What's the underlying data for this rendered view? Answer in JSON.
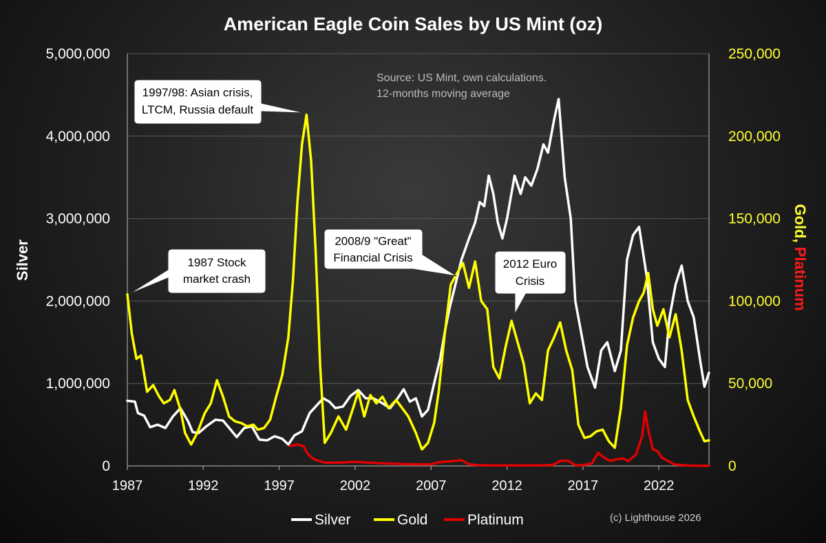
{
  "chart_data": {
    "type": "line",
    "title": "American Eagle Coin Sales by US Mint (oz)",
    "ylabel_left": "Silver",
    "ylabel_right_parts": [
      "Gold, ",
      "Platinum"
    ],
    "ylim_left": [
      0,
      5000000
    ],
    "ylim_right": [
      0,
      250000
    ],
    "xlim": [
      1987,
      2025.3
    ],
    "left_ticks": [
      "0",
      "1,000,000",
      "2,000,000",
      "3,000,000",
      "4,000,000",
      "5,000,000"
    ],
    "right_ticks": [
      "0",
      "50,000",
      "100,000",
      "150,000",
      "200,000",
      "250,000"
    ],
    "x_ticks": [
      "1987",
      "1992",
      "1997",
      "2002",
      "2007",
      "2012",
      "2017",
      "2022"
    ],
    "grid": "horizontal",
    "legend_position": "bottom",
    "source_lines": [
      "Source: US Mint, own calculations.",
      "12-months moving average"
    ],
    "credit": "(c) Lighthouse 2026",
    "colors": {
      "silver": "#ffffff",
      "gold": "#ffff00",
      "platinum": "#e00000",
      "right_axis": "#ffff33",
      "platinum_label": "#ff1a1a"
    },
    "series": [
      {
        "name": "Silver",
        "axis": "left",
        "color": "#ffffff",
        "points": [
          [
            1987,
            790000
          ],
          [
            1987.5,
            780000
          ],
          [
            1987.7,
            640000
          ],
          [
            1988.1,
            610000
          ],
          [
            1988.5,
            470000
          ],
          [
            1989,
            500000
          ],
          [
            1989.5,
            460000
          ],
          [
            1990,
            600000
          ],
          [
            1990.5,
            700000
          ],
          [
            1991,
            540000
          ],
          [
            1991.3,
            410000
          ],
          [
            1991.7,
            400000
          ],
          [
            1992.2,
            480000
          ],
          [
            1992.8,
            560000
          ],
          [
            1993.3,
            550000
          ],
          [
            1993.8,
            440000
          ],
          [
            1994.2,
            350000
          ],
          [
            1994.7,
            460000
          ],
          [
            1995.2,
            480000
          ],
          [
            1995.7,
            320000
          ],
          [
            1996.2,
            310000
          ],
          [
            1996.7,
            360000
          ],
          [
            1997.2,
            330000
          ],
          [
            1997.6,
            260000
          ],
          [
            1998,
            370000
          ],
          [
            1998.5,
            420000
          ],
          [
            1999,
            640000
          ],
          [
            1999.5,
            740000
          ],
          [
            1999.9,
            820000
          ],
          [
            2000.3,
            780000
          ],
          [
            2000.7,
            700000
          ],
          [
            2001.2,
            720000
          ],
          [
            2001.7,
            850000
          ],
          [
            2002.2,
            920000
          ],
          [
            2002.7,
            820000
          ],
          [
            2003.2,
            820000
          ],
          [
            2003.8,
            760000
          ],
          [
            2004.3,
            700000
          ],
          [
            2004.8,
            820000
          ],
          [
            2005.2,
            930000
          ],
          [
            2005.6,
            780000
          ],
          [
            2006,
            820000
          ],
          [
            2006.4,
            600000
          ],
          [
            2006.8,
            680000
          ],
          [
            2007.2,
            1000000
          ],
          [
            2007.6,
            1300000
          ],
          [
            2007.9,
            1620000
          ],
          [
            2008.2,
            1900000
          ],
          [
            2008.6,
            2200000
          ],
          [
            2009,
            2500000
          ],
          [
            2009.5,
            2760000
          ],
          [
            2009.9,
            2950000
          ],
          [
            2010.2,
            3200000
          ],
          [
            2010.5,
            3150000
          ],
          [
            2010.8,
            3520000
          ],
          [
            2011.1,
            3300000
          ],
          [
            2011.4,
            2950000
          ],
          [
            2011.7,
            2760000
          ],
          [
            2012,
            3000000
          ],
          [
            2012.5,
            3520000
          ],
          [
            2012.9,
            3300000
          ],
          [
            2013.2,
            3500000
          ],
          [
            2013.6,
            3400000
          ],
          [
            2014,
            3600000
          ],
          [
            2014.4,
            3900000
          ],
          [
            2014.7,
            3800000
          ],
          [
            2015.1,
            4200000
          ],
          [
            2015.4,
            4450000
          ],
          [
            2015.8,
            3500000
          ],
          [
            2016.2,
            3000000
          ],
          [
            2016.5,
            2000000
          ],
          [
            2016.9,
            1600000
          ],
          [
            2017.3,
            1200000
          ],
          [
            2017.8,
            950000
          ],
          [
            2018.2,
            1400000
          ],
          [
            2018.6,
            1500000
          ],
          [
            2019.1,
            1150000
          ],
          [
            2019.5,
            1400000
          ],
          [
            2019.9,
            2500000
          ],
          [
            2020.3,
            2800000
          ],
          [
            2020.7,
            2900000
          ],
          [
            2021.2,
            2300000
          ],
          [
            2021.6,
            1500000
          ],
          [
            2022,
            1300000
          ],
          [
            2022.4,
            1200000
          ],
          [
            2022.7,
            1800000
          ],
          [
            2023.1,
            2200000
          ],
          [
            2023.5,
            2430000
          ],
          [
            2023.9,
            2000000
          ],
          [
            2024.3,
            1800000
          ],
          [
            2024.7,
            1300000
          ],
          [
            2025,
            960000
          ],
          [
            2025.3,
            1130000
          ]
        ]
      },
      {
        "name": "Gold",
        "axis": "right",
        "color": "#ffff00",
        "points": [
          [
            1987,
            104000
          ],
          [
            1987.3,
            80000
          ],
          [
            1987.6,
            65000
          ],
          [
            1987.9,
            67000
          ],
          [
            1988.3,
            45000
          ],
          [
            1988.7,
            49000
          ],
          [
            1989.1,
            42000
          ],
          [
            1989.4,
            38000
          ],
          [
            1989.8,
            40000
          ],
          [
            1990.1,
            46000
          ],
          [
            1990.5,
            34000
          ],
          [
            1990.8,
            20000
          ],
          [
            1991.2,
            13000
          ],
          [
            1991.6,
            20000
          ],
          [
            1992.1,
            32000
          ],
          [
            1992.5,
            38000
          ],
          [
            1992.9,
            52000
          ],
          [
            1993.3,
            42000
          ],
          [
            1993.7,
            30000
          ],
          [
            1994.1,
            27000
          ],
          [
            1994.5,
            26000
          ],
          [
            1994.9,
            24000
          ],
          [
            1995.3,
            25000
          ],
          [
            1995.6,
            22000
          ],
          [
            1996,
            23000
          ],
          [
            1996.4,
            28000
          ],
          [
            1996.8,
            42000
          ],
          [
            1997.2,
            55000
          ],
          [
            1997.6,
            78000
          ],
          [
            1997.9,
            112000
          ],
          [
            1998.2,
            160000
          ],
          [
            1998.5,
            195000
          ],
          [
            1998.8,
            213000
          ],
          [
            1999.1,
            185000
          ],
          [
            1999.4,
            130000
          ],
          [
            1999.7,
            60000
          ],
          [
            2000,
            14000
          ],
          [
            2000.4,
            20000
          ],
          [
            2000.9,
            30000
          ],
          [
            2001.4,
            22000
          ],
          [
            2001.9,
            36000
          ],
          [
            2002.2,
            45000
          ],
          [
            2002.6,
            30000
          ],
          [
            2003,
            43000
          ],
          [
            2003.4,
            38000
          ],
          [
            2003.8,
            42000
          ],
          [
            2004.2,
            35000
          ],
          [
            2004.7,
            40000
          ],
          [
            2005.1,
            35000
          ],
          [
            2005.5,
            30000
          ],
          [
            2006,
            20000
          ],
          [
            2006.4,
            10000
          ],
          [
            2006.8,
            14000
          ],
          [
            2007.2,
            26000
          ],
          [
            2007.5,
            45000
          ],
          [
            2007.9,
            80000
          ],
          [
            2008.3,
            110000
          ],
          [
            2008.6,
            115000
          ],
          [
            2009.1,
            123000
          ],
          [
            2009.5,
            108000
          ],
          [
            2009.9,
            124000
          ],
          [
            2010.3,
            100000
          ],
          [
            2010.7,
            95000
          ],
          [
            2011.1,
            60000
          ],
          [
            2011.5,
            53000
          ],
          [
            2011.9,
            72000
          ],
          [
            2012.3,
            88000
          ],
          [
            2012.7,
            75000
          ],
          [
            2013.1,
            62000
          ],
          [
            2013.5,
            38000
          ],
          [
            2013.9,
            44000
          ],
          [
            2014.3,
            40000
          ],
          [
            2014.7,
            70000
          ],
          [
            2015.1,
            78000
          ],
          [
            2015.5,
            87000
          ],
          [
            2015.9,
            70000
          ],
          [
            2016.3,
            58000
          ],
          [
            2016.7,
            25000
          ],
          [
            2017.1,
            17000
          ],
          [
            2017.5,
            18000
          ],
          [
            2017.9,
            21000
          ],
          [
            2018.3,
            22000
          ],
          [
            2018.7,
            15000
          ],
          [
            2019.1,
            11000
          ],
          [
            2019.5,
            35000
          ],
          [
            2019.9,
            73000
          ],
          [
            2020.3,
            90000
          ],
          [
            2020.7,
            100000
          ],
          [
            2021,
            105000
          ],
          [
            2021.3,
            117000
          ],
          [
            2021.6,
            95000
          ],
          [
            2021.9,
            85000
          ],
          [
            2022.3,
            95000
          ],
          [
            2022.7,
            78000
          ],
          [
            2023.1,
            92000
          ],
          [
            2023.5,
            70000
          ],
          [
            2023.9,
            40000
          ],
          [
            2024.3,
            30000
          ],
          [
            2024.7,
            21000
          ],
          [
            2025,
            15000
          ],
          [
            2025.3,
            15500
          ]
        ]
      },
      {
        "name": "Platinum",
        "axis": "right",
        "color": "#e00000",
        "points": [
          [
            1997.7,
            12000
          ],
          [
            1998.2,
            13000
          ],
          [
            1998.6,
            12000
          ],
          [
            1998.9,
            7000
          ],
          [
            1999.3,
            4000
          ],
          [
            2000,
            2000
          ],
          [
            2001,
            2000
          ],
          [
            2002,
            2500
          ],
          [
            2003,
            2000
          ],
          [
            2004,
            1500
          ],
          [
            2005,
            1200
          ],
          [
            2006,
            1000
          ],
          [
            2007,
            1000
          ],
          [
            2007.5,
            2200
          ],
          [
            2008.5,
            3000
          ],
          [
            2009,
            3500
          ],
          [
            2009.5,
            1000
          ],
          [
            2010,
            500
          ],
          [
            2011,
            300
          ],
          [
            2012,
            300
          ],
          [
            2013,
            300
          ],
          [
            2014,
            300
          ],
          [
            2014.5,
            400
          ],
          [
            2015,
            500
          ],
          [
            2015.5,
            3000
          ],
          [
            2016,
            3200
          ],
          [
            2016.5,
            500
          ],
          [
            2017,
            400
          ],
          [
            2017.6,
            1500
          ],
          [
            2018,
            8000
          ],
          [
            2018.4,
            5000
          ],
          [
            2018.8,
            3000
          ],
          [
            2019.2,
            4000
          ],
          [
            2019.6,
            4500
          ],
          [
            2020,
            3000
          ],
          [
            2020.5,
            7000
          ],
          [
            2020.9,
            18000
          ],
          [
            2021.1,
            33000
          ],
          [
            2021.3,
            22000
          ],
          [
            2021.6,
            10000
          ],
          [
            2021.9,
            9000
          ],
          [
            2022.2,
            5000
          ],
          [
            2022.6,
            3000
          ],
          [
            2023,
            1000
          ],
          [
            2023.5,
            500
          ],
          [
            2024,
            200
          ],
          [
            2024.5,
            100
          ],
          [
            2025,
            50
          ],
          [
            2025.3,
            50
          ]
        ]
      }
    ],
    "annotations": [
      {
        "text_lines": [
          "1987 Stock",
          "market crash"
        ]
      },
      {
        "text_lines": [
          "1997/98: Asian crisis,",
          "LTCM, Russia default"
        ]
      },
      {
        "text_lines": [
          "2008/9 \"Great\"",
          "Financial Crisis"
        ]
      },
      {
        "text_lines": [
          "2012 Euro",
          "Crisis"
        ]
      }
    ]
  }
}
